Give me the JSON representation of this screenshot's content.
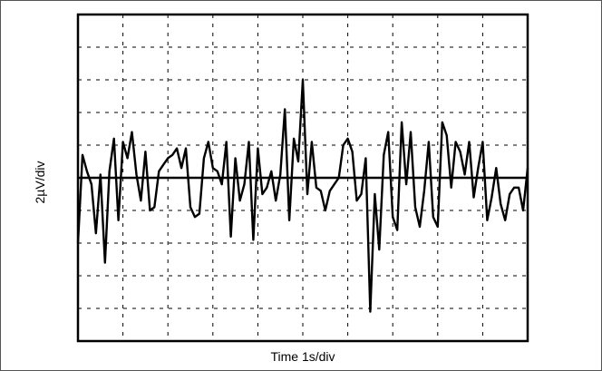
{
  "chart_data": {
    "type": "line",
    "title": "",
    "xlabel": "Time 1s/div",
    "ylabel": "2µV/div",
    "xlim": [
      0,
      10
    ],
    "ylim": [
      -5,
      5
    ],
    "grid": true,
    "grid_style": "dashed",
    "divisions": {
      "x": 10,
      "y": 10
    },
    "colors": {
      "trace": "#000000",
      "grid": "#000000",
      "frame": "#000000"
    },
    "series": [
      {
        "x": [
          0.0,
          0.1,
          0.2,
          0.3,
          0.4,
          0.5,
          0.6,
          0.7,
          0.8,
          0.9,
          1.0,
          1.1,
          1.2,
          1.3,
          1.4,
          1.5,
          1.6,
          1.7,
          1.8,
          1.9,
          2.0,
          2.1,
          2.2,
          2.3,
          2.4,
          2.5,
          2.6,
          2.7,
          2.8,
          2.9,
          3.0,
          3.1,
          3.2,
          3.3,
          3.4,
          3.5,
          3.6,
          3.7,
          3.8,
          3.9,
          4.0,
          4.1,
          4.2,
          4.3,
          4.4,
          4.5,
          4.6,
          4.7,
          4.8,
          4.9,
          5.0,
          5.1,
          5.2,
          5.3,
          5.4,
          5.5,
          5.6,
          5.7,
          5.8,
          5.9,
          6.0,
          6.1,
          6.2,
          6.3,
          6.4,
          6.5,
          6.6,
          6.7,
          6.8,
          6.9,
          7.0,
          7.1,
          7.2,
          7.3,
          7.4,
          7.5,
          7.6,
          7.7,
          7.8,
          7.9,
          8.0,
          8.1,
          8.2,
          8.3,
          8.4,
          8.5,
          8.6,
          8.7,
          8.8,
          8.9,
          9.0,
          9.1,
          9.2,
          9.3,
          9.4,
          9.5,
          9.6,
          9.7,
          9.8,
          9.9,
          10.0
        ],
        "values": [
          -2.0,
          0.7,
          0.2,
          -0.2,
          -1.7,
          0.1,
          -2.6,
          0.2,
          1.2,
          -1.3,
          1.1,
          0.6,
          1.4,
          0.1,
          -0.7,
          0.8,
          -1.0,
          -0.9,
          0.2,
          0.4,
          0.6,
          0.7,
          0.9,
          0.3,
          0.9,
          -0.9,
          -1.2,
          -1.1,
          0.6,
          1.1,
          0.3,
          0.2,
          -0.2,
          1.1,
          -1.8,
          0.6,
          -0.7,
          -0.2,
          1.1,
          -1.9,
          0.9,
          -0.5,
          -0.3,
          0.2,
          -0.7,
          0.1,
          2.1,
          -1.3,
          1.2,
          0.5,
          3.0,
          -0.5,
          1.1,
          -0.3,
          -0.4,
          -1.0,
          -0.4,
          -0.2,
          0.0,
          1.0,
          1.2,
          0.8,
          -0.7,
          -0.5,
          0.6,
          -4.1,
          -0.5,
          -2.2,
          0.7,
          1.4,
          -1.2,
          -1.6,
          1.7,
          -0.2,
          1.4,
          -0.9,
          -1.5,
          -0.4,
          1.1,
          -1.2,
          -1.5,
          1.7,
          1.3,
          -0.3,
          1.1,
          0.8,
          0.1,
          1.1,
          -0.6,
          0.3,
          1.1,
          -1.3,
          -0.6,
          0.3,
          -0.8,
          -1.3,
          -0.5,
          -0.3,
          -0.3,
          -1.0,
          0.3
        ]
      }
    ]
  }
}
